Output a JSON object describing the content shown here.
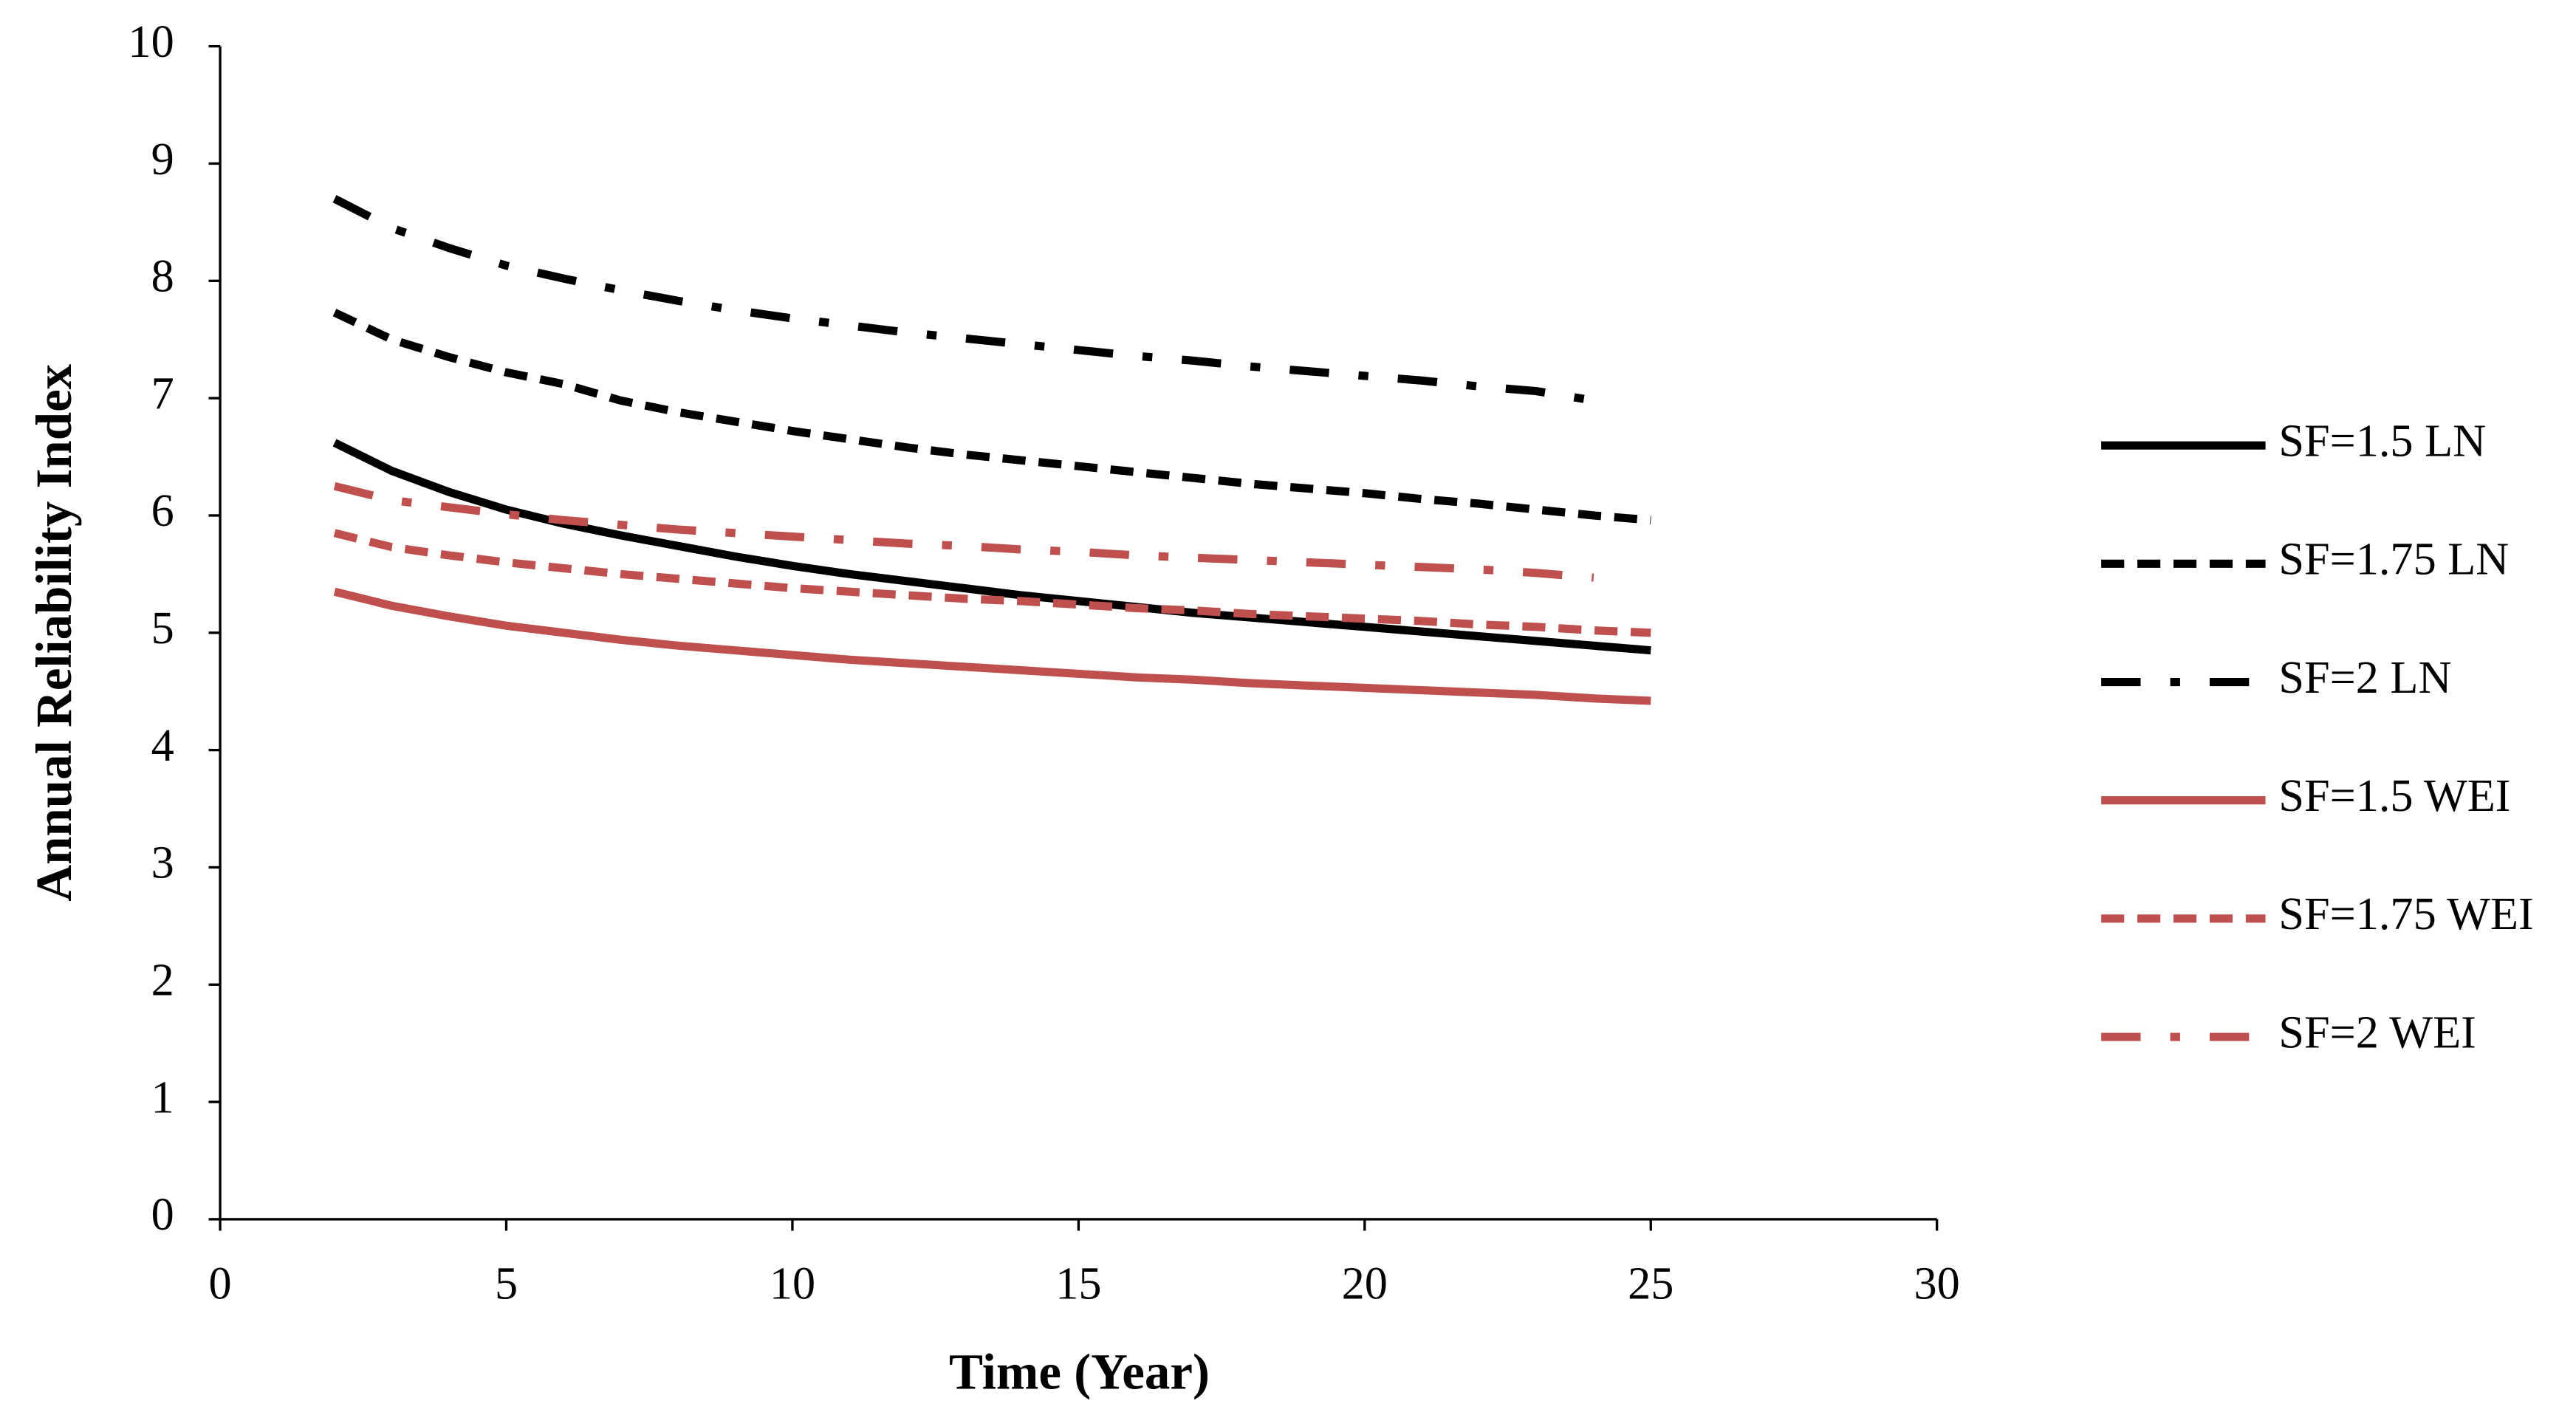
{
  "chart_data": {
    "type": "line",
    "x_label": "Time (Year)",
    "y_label": "Annual Reliability Index",
    "x": [
      2,
      3,
      4,
      5,
      6,
      7,
      8,
      9,
      10,
      11,
      12,
      13,
      14,
      15,
      16,
      17,
      18,
      19,
      20,
      21,
      22,
      23,
      24,
      25
    ],
    "series": [
      {
        "name": "SF=1.5 LN",
        "color": "#000000",
        "dash": "solid",
        "values": [
          6.62,
          6.38,
          6.2,
          6.05,
          5.93,
          5.83,
          5.74,
          5.65,
          5.57,
          5.5,
          5.44,
          5.38,
          5.32,
          5.27,
          5.22,
          5.17,
          5.13,
          5.09,
          5.05,
          5.01,
          4.97,
          4.93,
          4.89,
          4.85
        ]
      },
      {
        "name": "SF=1.75 LN",
        "color": "#000000",
        "dash": "dash",
        "values": [
          7.73,
          7.5,
          7.35,
          7.22,
          7.12,
          6.98,
          6.88,
          6.8,
          6.72,
          6.65,
          6.58,
          6.52,
          6.47,
          6.42,
          6.37,
          6.32,
          6.27,
          6.23,
          6.19,
          6.14,
          6.1,
          6.05,
          6.0,
          5.96
        ]
      },
      {
        "name": "SF=2 LN",
        "color": "#000000",
        "dash": "dashdot",
        "values": [
          8.7,
          8.45,
          8.28,
          8.13,
          8.02,
          7.92,
          7.83,
          7.75,
          7.68,
          7.62,
          7.56,
          7.51,
          7.46,
          7.41,
          7.36,
          7.32,
          7.27,
          7.23,
          7.19,
          7.15,
          7.1,
          7.06,
          6.98,
          null
        ]
      },
      {
        "name": "SF=1.5 WEI",
        "color": "#c0504d",
        "dash": "solid",
        "values": [
          5.35,
          5.23,
          5.14,
          5.06,
          5.0,
          4.94,
          4.89,
          4.85,
          4.81,
          4.77,
          4.74,
          4.71,
          4.68,
          4.65,
          4.62,
          4.6,
          4.57,
          4.55,
          4.53,
          4.51,
          4.49,
          4.47,
          4.44,
          4.42
        ]
      },
      {
        "name": "SF=1.75 WEI",
        "color": "#c0504d",
        "dash": "dash",
        "values": [
          5.85,
          5.73,
          5.66,
          5.6,
          5.55,
          5.5,
          5.46,
          5.42,
          5.38,
          5.35,
          5.32,
          5.29,
          5.27,
          5.24,
          5.21,
          5.19,
          5.16,
          5.14,
          5.12,
          5.1,
          5.07,
          5.05,
          5.02,
          5.0
        ]
      },
      {
        "name": "SF=2 WEI",
        "color": "#c0504d",
        "dash": "dashdot",
        "values": [
          6.25,
          6.13,
          6.07,
          6.01,
          5.96,
          5.92,
          5.88,
          5.85,
          5.82,
          5.79,
          5.76,
          5.74,
          5.71,
          5.69,
          5.66,
          5.64,
          5.62,
          5.6,
          5.58,
          5.56,
          5.54,
          5.51,
          5.47,
          null
        ]
      }
    ],
    "xlim": [
      0,
      30
    ],
    "xticks": [
      0,
      5,
      10,
      15,
      20,
      25,
      30
    ],
    "ylim": [
      0,
      10
    ],
    "yticks": [
      0,
      1,
      2,
      3,
      4,
      5,
      6,
      7,
      8,
      9,
      10
    ],
    "legend": "right"
  }
}
